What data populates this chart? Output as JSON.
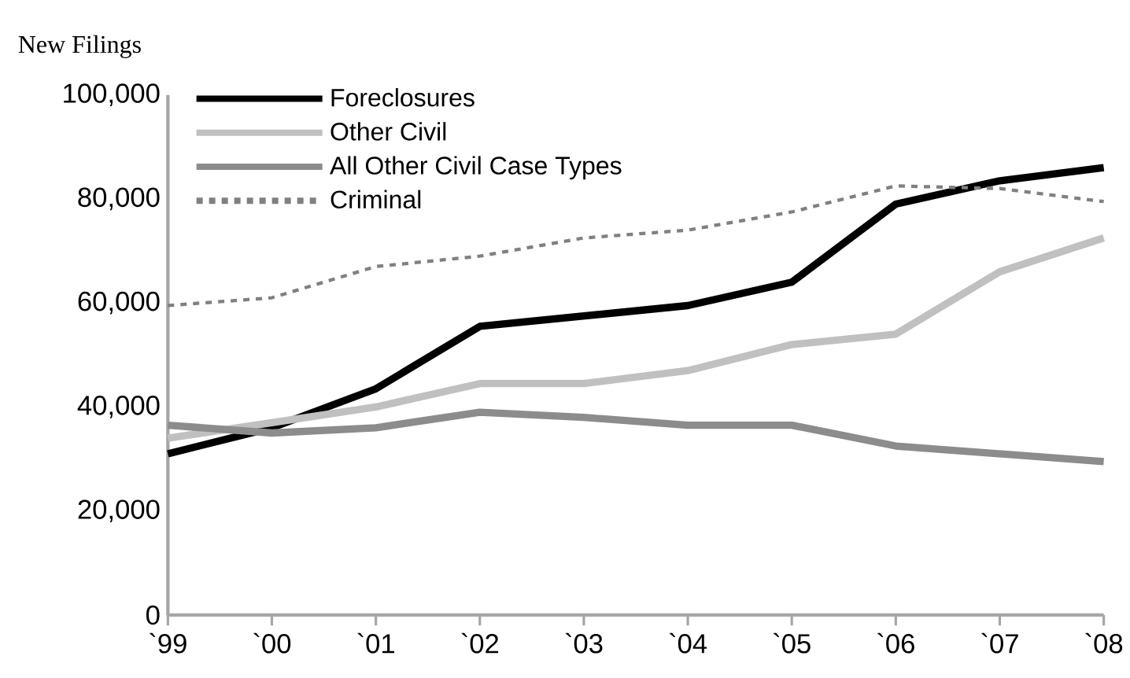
{
  "chart_data": {
    "type": "line",
    "ylabel": "New Filings",
    "categories": [
      "`99",
      "`00",
      "`01",
      "`02",
      "`03",
      "`04",
      "`05",
      "`06",
      "`07",
      "`08"
    ],
    "series": [
      {
        "name": "Foreclosures",
        "color": "#000000",
        "line_style": "solid",
        "values": [
          31000,
          36000,
          43500,
          55500,
          57500,
          59500,
          64000,
          79000,
          83500,
          86000
        ]
      },
      {
        "name": "Other Civil",
        "color": "#c0c0c0",
        "line_style": "solid",
        "values": [
          34000,
          37000,
          40000,
          44500,
          44500,
          47000,
          52000,
          54000,
          66000,
          72500
        ]
      },
      {
        "name": "All Other Civil Case Types",
        "color": "#8c8c8c",
        "line_style": "solid",
        "values": [
          36500,
          35000,
          36000,
          39000,
          38000,
          36500,
          36500,
          32500,
          31000,
          29500
        ]
      },
      {
        "name": "Criminal",
        "color": "#808080",
        "line_style": "dashed",
        "values": [
          59500,
          61000,
          67000,
          69000,
          72500,
          74000,
          77500,
          82500,
          82000,
          79500
        ]
      }
    ],
    "ylim": [
      0,
      100000
    ],
    "yticks": [
      {
        "value": 0,
        "label": "0"
      },
      {
        "value": 20000,
        "label": "20,000"
      },
      {
        "value": 40000,
        "label": "40,000"
      },
      {
        "value": 60000,
        "label": "60,000"
      },
      {
        "value": 80000,
        "label": "80,000"
      },
      {
        "value": 100000,
        "label": "100,000"
      }
    ],
    "legend": "top left",
    "grid": false,
    "marker": "none"
  }
}
